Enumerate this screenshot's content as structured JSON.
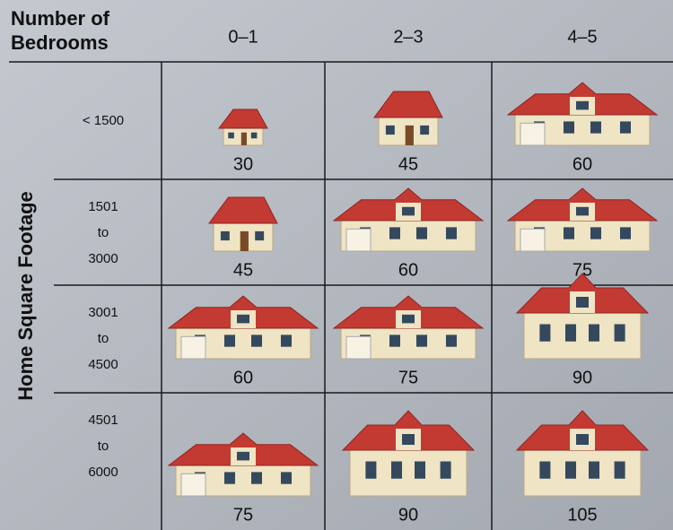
{
  "header": {
    "title": [
      "Number of",
      "Bedrooms"
    ],
    "columns": [
      "0–1",
      "2–3",
      "4–5"
    ]
  },
  "row_header": "Home Square Footage",
  "rows": [
    {
      "label": [
        "< 1500"
      ],
      "values": [
        30,
        45,
        60
      ]
    },
    {
      "label": [
        "1501",
        "to",
        "3000"
      ],
      "values": [
        45,
        60,
        75
      ]
    },
    {
      "label": [
        "3001",
        "to",
        "4500"
      ],
      "values": [
        60,
        75,
        90
      ]
    },
    {
      "label": [
        "4501",
        "to",
        "6000"
      ],
      "values": [
        75,
        90,
        105
      ]
    }
  ]
}
